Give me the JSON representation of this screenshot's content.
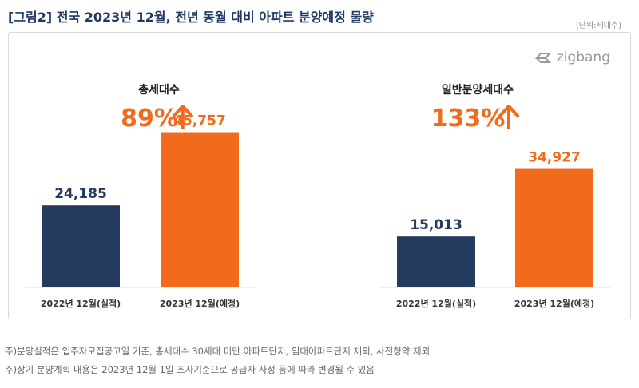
{
  "header": {
    "title": "[그림2] 전국 2023년 12월, 전년 동월 대비 아파트 분양예정 물량",
    "unit": "(단위:세대수)"
  },
  "logo": {
    "text": "zigbang",
    "icon": "zigbang-logo-icon"
  },
  "colors": {
    "navy": "#243a5e",
    "orange": "#f26b1d",
    "percent": "#f26b1d",
    "axis": "#666666"
  },
  "chart_data": [
    {
      "type": "bar",
      "title": "총세대수",
      "change": "89%",
      "change_icon": "arrow-up-icon",
      "categories": [
        "2022년 12월(실적)",
        "2023년 12월(예정)"
      ],
      "values": [
        24185,
        45757
      ],
      "value_labels": [
        "24,185",
        "45,757"
      ],
      "ylim": [
        0,
        60000
      ]
    },
    {
      "type": "bar",
      "title": "일반분양세대수",
      "change": "133%",
      "change_icon": "arrow-up-icon",
      "categories": [
        "2022년 12월(실적)",
        "2023년 12월(예정)"
      ],
      "values": [
        15013,
        34927
      ],
      "value_labels": [
        "15,013",
        "34,927"
      ],
      "ylim": [
        0,
        60000
      ]
    }
  ],
  "notes": [
    "주)분양실적은 입주자모집공고일 기준, 총세대수 30세대 미만 아파트단지, 임대아파트단지 제외, 사전청약 제외",
    "주)상기 분양계획 내용은 2023년 12월 1일 조사기준으로 공급자 사정 등에 따라 변경될 수 있음"
  ]
}
